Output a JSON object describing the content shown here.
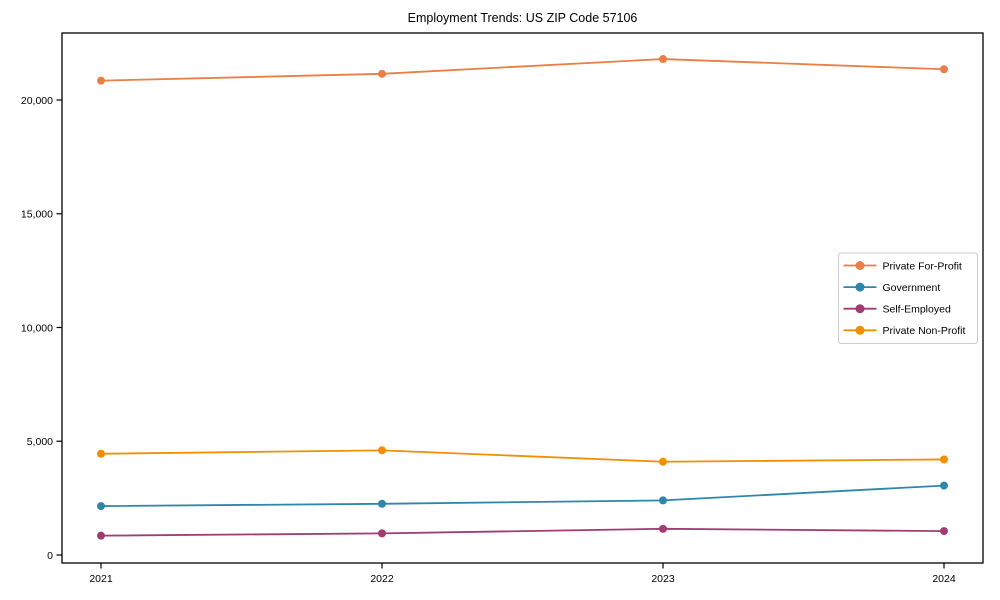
{
  "chart_data": {
    "type": "line",
    "title": "Employment Trends: US ZIP Code 57106",
    "x": [
      2021,
      2022,
      2023,
      2024
    ],
    "x_tick_labels": [
      "2021",
      "2022",
      "2023",
      "2024"
    ],
    "series": [
      {
        "name": "Private For-Profit",
        "color": "#EA7E45",
        "values": [
          20850,
          21150,
          21800,
          21350
        ]
      },
      {
        "name": "Government",
        "color": "#2E86AB",
        "values": [
          2150,
          2250,
          2400,
          3050
        ]
      },
      {
        "name": "Self-Employed",
        "color": "#A23B72",
        "values": [
          850,
          950,
          1150,
          1050
        ]
      },
      {
        "name": "Private Non-Profit",
        "color": "#F18F01",
        "values": [
          4450,
          4600,
          4100,
          4200
        ]
      }
    ],
    "yticks": {
      "values": [
        0,
        5000,
        10000,
        15000,
        20000
      ],
      "labels": [
        "0",
        "5,000",
        "10,000",
        "15,000",
        "20,000"
      ]
    },
    "ylim": [
      -352,
      22945
    ],
    "xlabel": "",
    "ylabel": "",
    "grid": false,
    "marker": "circle",
    "line_style": "solid",
    "legend": {
      "position": "center-right",
      "entries": [
        "Private For-Profit",
        "Government",
        "Self-Employed",
        "Private Non-Profit"
      ]
    }
  },
  "colors": {
    "background": "#ffffff",
    "spine": "#000000",
    "tick": "#000000",
    "legend_background": "#ffffff",
    "legend_border": "#cccccc"
  }
}
